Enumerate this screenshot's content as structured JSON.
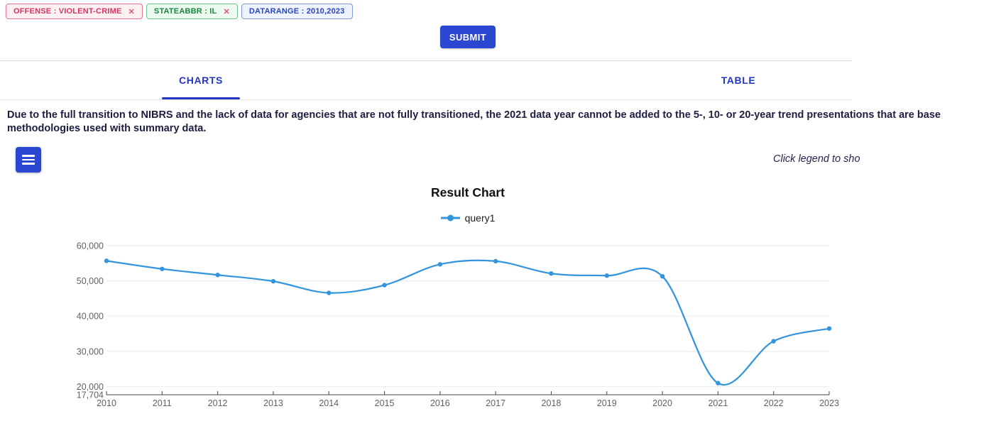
{
  "filters": {
    "chips": [
      {
        "label": "OFFENSE : VIOLENT-CRIME",
        "close": "✕",
        "text_color": "#d6365f",
        "close_color": "#e0526e",
        "bg": "#fdf0f3",
        "border": "#e87492"
      },
      {
        "label": "STATEABBR : IL",
        "close": "✕",
        "text_color": "#19873e",
        "close_color": "#e0526e",
        "bg": "#edfaf1",
        "border": "#6fc48e"
      },
      {
        "label": "DATARANGE : 2010,2023",
        "close": null,
        "text_color": "#2945c8",
        "close_color": null,
        "bg": "#eff3fd",
        "border": "#8396dd"
      }
    ],
    "submit_label": "SUBMIT"
  },
  "tabs": [
    {
      "label": "CHARTS",
      "active": true
    },
    {
      "label": "TABLE",
      "active": false
    }
  ],
  "notice": {
    "line1": "Due to the full transition to NIBRS and the lack of data for agencies that are not fully transitioned, the 2021 data year cannot be added to the 5-, 10- or 20-year trend presentations that are base",
    "line2": "methodologies used with summary data."
  },
  "toolbar": {
    "menu_icon": "hamburger-icon",
    "legend_hint": "Click legend to sho"
  },
  "chart_data": {
    "type": "line",
    "title": "Result Chart",
    "x": [
      2010,
      2011,
      2012,
      2013,
      2014,
      2015,
      2016,
      2017,
      2018,
      2019,
      2020,
      2021,
      2022,
      2023
    ],
    "series": [
      {
        "name": "query1",
        "color": "#3295dd",
        "values": [
          55700,
          53400,
          51700,
          49900,
          46600,
          48800,
          54700,
          55600,
          52100,
          51500,
          51300,
          21000,
          32900,
          36500
        ]
      }
    ],
    "ylim": [
      17704,
      60000
    ],
    "yticks": [
      60000,
      50000,
      40000,
      30000,
      20000,
      17704
    ],
    "ytick_labels": [
      "60,000",
      "50,000",
      "40,000",
      "30,000",
      "20,000",
      "17,704"
    ],
    "grid": true,
    "legend_position": "top",
    "xlabel": "",
    "ylabel": "",
    "axis_text_color": "#616167",
    "grid_color": "#ebebf1",
    "axis_line_color": "#45454d"
  }
}
